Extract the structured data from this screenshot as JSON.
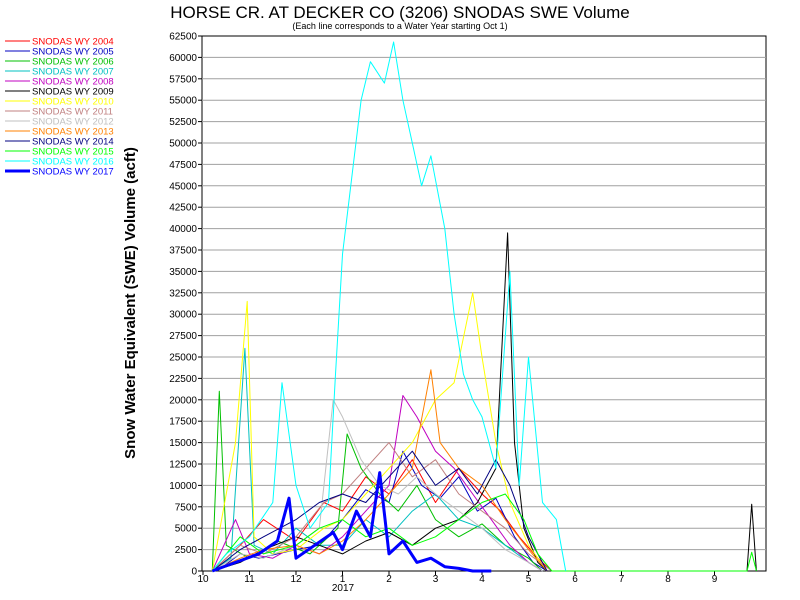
{
  "chart_data": {
    "type": "line",
    "title": "HORSE CR. AT DECKER CO (3206) SNODAS SWE Volume",
    "subtitle": "(Each line corresponds to a Water Year starting Oct 1)",
    "ylabel": "Snow Water Equivalent (SWE) Volume (acft)",
    "xlabel": "",
    "ylim": [
      0,
      62500
    ],
    "y_ticks": [
      "0",
      "2500",
      "5000",
      "7500",
      "10000",
      "12500",
      "15000",
      "17500",
      "20000",
      "22500",
      "25000",
      "27500",
      "30000",
      "32500",
      "35000",
      "37500",
      "40000",
      "42500",
      "45000",
      "47500",
      "50000",
      "52500",
      "55000",
      "57500",
      "60000",
      "62500"
    ],
    "x_ticks": [
      "10",
      "11",
      "12",
      "1",
      "2",
      "3",
      "4",
      "5",
      "6",
      "7",
      "8",
      "9"
    ],
    "x_year_label": "2017",
    "grid": "horizontal",
    "legend_position": "left",
    "series": [
      {
        "name": "SNODAS WY 2004",
        "color": "#ff0000",
        "width": 1,
        "points": [
          [
            10.2,
            0
          ],
          [
            10.8,
            3000
          ],
          [
            11.3,
            6000
          ],
          [
            12.0,
            3500
          ],
          [
            12.6,
            8000
          ],
          [
            1.0,
            7000
          ],
          [
            1.5,
            11000
          ],
          [
            2.0,
            9000
          ],
          [
            2.5,
            13000
          ],
          [
            3.0,
            8000
          ],
          [
            3.5,
            12000
          ],
          [
            4.0,
            9000
          ],
          [
            4.4,
            7000
          ],
          [
            4.8,
            4000
          ],
          [
            5.2,
            1500
          ],
          [
            5.5,
            0
          ]
        ]
      },
      {
        "name": "SNODAS WY 2005",
        "color": "#0000c0",
        "width": 1,
        "points": [
          [
            10.3,
            0
          ],
          [
            10.8,
            2000
          ],
          [
            11.2,
            1500
          ],
          [
            12.0,
            2500
          ],
          [
            12.5,
            3000
          ],
          [
            1.0,
            6000
          ],
          [
            1.5,
            9500
          ],
          [
            2.0,
            8000
          ],
          [
            2.3,
            14000
          ],
          [
            2.7,
            10000
          ],
          [
            3.1,
            8500
          ],
          [
            3.5,
            11000
          ],
          [
            3.9,
            7000
          ],
          [
            4.3,
            8500
          ],
          [
            4.7,
            4000
          ],
          [
            5.1,
            1000
          ],
          [
            5.4,
            0
          ]
        ]
      },
      {
        "name": "SNODAS WY 2006",
        "color": "#00c000",
        "width": 1,
        "points": [
          [
            10.2,
            0
          ],
          [
            10.35,
            21000
          ],
          [
            10.5,
            3000
          ],
          [
            11.0,
            1500
          ],
          [
            11.6,
            3500
          ],
          [
            12.3,
            2000
          ],
          [
            12.9,
            5000
          ],
          [
            1.1,
            16000
          ],
          [
            1.4,
            12000
          ],
          [
            1.8,
            9000
          ],
          [
            2.2,
            7000
          ],
          [
            2.6,
            10000
          ],
          [
            3.0,
            6000
          ],
          [
            3.5,
            4000
          ],
          [
            4.0,
            5500
          ],
          [
            4.5,
            3000
          ],
          [
            5.0,
            1500
          ],
          [
            5.3,
            0
          ]
        ]
      },
      {
        "name": "SNODAS WY 2007",
        "color": "#00c0c0",
        "width": 1,
        "points": [
          [
            10.2,
            0
          ],
          [
            10.6,
            1500
          ],
          [
            10.9,
            26000
          ],
          [
            11.1,
            3000
          ],
          [
            11.5,
            2000
          ],
          [
            12.0,
            5000
          ],
          [
            12.5,
            3000
          ],
          [
            1.0,
            3000
          ],
          [
            1.5,
            6000
          ],
          [
            2.0,
            4000
          ],
          [
            2.5,
            7000
          ],
          [
            3.0,
            9000
          ],
          [
            3.5,
            6000
          ],
          [
            4.0,
            5000
          ],
          [
            4.5,
            3000
          ],
          [
            5.0,
            1000
          ],
          [
            5.3,
            0
          ]
        ]
      },
      {
        "name": "SNODAS WY 2008",
        "color": "#c000c0",
        "width": 1,
        "points": [
          [
            10.2,
            0
          ],
          [
            10.7,
            6000
          ],
          [
            11.0,
            2000
          ],
          [
            11.5,
            1500
          ],
          [
            12.0,
            3000
          ],
          [
            12.5,
            2000
          ],
          [
            1.0,
            4000
          ],
          [
            1.5,
            7000
          ],
          [
            2.0,
            10000
          ],
          [
            2.3,
            20500
          ],
          [
            2.6,
            18000
          ],
          [
            3.0,
            14000
          ],
          [
            3.4,
            12000
          ],
          [
            3.8,
            9000
          ],
          [
            4.2,
            6000
          ],
          [
            4.6,
            3000
          ],
          [
            5.0,
            1000
          ],
          [
            5.3,
            0
          ]
        ]
      },
      {
        "name": "SNODAS WY 2009",
        "color": "#000000",
        "width": 1,
        "points": [
          [
            10.2,
            0
          ],
          [
            10.8,
            1000
          ],
          [
            11.3,
            2500
          ],
          [
            12.0,
            4000
          ],
          [
            12.5,
            3000
          ],
          [
            1.0,
            2000
          ],
          [
            1.5,
            3500
          ],
          [
            2.0,
            4500
          ],
          [
            2.5,
            3000
          ],
          [
            3.0,
            5000
          ],
          [
            3.5,
            6000
          ],
          [
            3.9,
            8000
          ],
          [
            4.3,
            12000
          ],
          [
            4.55,
            39500
          ],
          [
            4.7,
            15000
          ],
          [
            4.9,
            5000
          ],
          [
            5.2,
            1000
          ],
          [
            5.4,
            0
          ],
          [
            9.7,
            0
          ],
          [
            9.8,
            7800
          ],
          [
            9.9,
            0
          ]
        ]
      },
      {
        "name": "SNODAS WY 2010",
        "color": "#ffff00",
        "width": 1,
        "points": [
          [
            10.2,
            0
          ],
          [
            10.7,
            15000
          ],
          [
            10.95,
            31500
          ],
          [
            11.1,
            4000
          ],
          [
            11.5,
            2000
          ],
          [
            12.0,
            2500
          ],
          [
            12.6,
            5000
          ],
          [
            1.0,
            6000
          ],
          [
            1.5,
            9000
          ],
          [
            2.0,
            12000
          ],
          [
            2.5,
            15000
          ],
          [
            3.0,
            20000
          ],
          [
            3.4,
            22000
          ],
          [
            3.8,
            32500
          ],
          [
            4.0,
            25000
          ],
          [
            4.3,
            15000
          ],
          [
            4.6,
            8000
          ],
          [
            5.0,
            3000
          ],
          [
            5.4,
            0
          ]
        ]
      },
      {
        "name": "SNODAS WY 2011",
        "color": "#c08080",
        "width": 1,
        "points": [
          [
            10.2,
            0
          ],
          [
            10.8,
            3000
          ],
          [
            11.3,
            2000
          ],
          [
            12.0,
            4000
          ],
          [
            12.6,
            8000
          ],
          [
            1.0,
            9000
          ],
          [
            1.5,
            12000
          ],
          [
            2.0,
            15000
          ],
          [
            2.5,
            11000
          ],
          [
            3.0,
            13000
          ],
          [
            3.5,
            9000
          ],
          [
            4.0,
            7000
          ],
          [
            4.5,
            5000
          ],
          [
            5.0,
            2000
          ],
          [
            5.5,
            0
          ]
        ]
      },
      {
        "name": "SNODAS WY 2012",
        "color": "#c0c0c0",
        "width": 1,
        "points": [
          [
            10.2,
            0
          ],
          [
            10.8,
            2000
          ],
          [
            11.3,
            1500
          ],
          [
            12.0,
            3000
          ],
          [
            12.5,
            5000
          ],
          [
            12.8,
            20000
          ],
          [
            1.0,
            18000
          ],
          [
            1.4,
            13000
          ],
          [
            1.8,
            10000
          ],
          [
            2.2,
            9000
          ],
          [
            2.6,
            11000
          ],
          [
            3.0,
            9000
          ],
          [
            3.5,
            7000
          ],
          [
            4.0,
            5000
          ],
          [
            4.5,
            2500
          ],
          [
            5.0,
            1000
          ],
          [
            5.3,
            0
          ]
        ]
      },
      {
        "name": "SNODAS WY 2013",
        "color": "#ff8000",
        "width": 1,
        "points": [
          [
            10.2,
            0
          ],
          [
            10.8,
            1500
          ],
          [
            11.3,
            2500
          ],
          [
            12.0,
            3000
          ],
          [
            12.5,
            2000
          ],
          [
            1.0,
            3500
          ],
          [
            1.5,
            6000
          ],
          [
            2.0,
            9000
          ],
          [
            2.5,
            12000
          ],
          [
            2.9,
            23500
          ],
          [
            3.1,
            15000
          ],
          [
            3.5,
            12000
          ],
          [
            4.0,
            10000
          ],
          [
            4.5,
            6000
          ],
          [
            5.0,
            2500
          ],
          [
            5.4,
            0
          ]
        ]
      },
      {
        "name": "SNODAS WY 2014",
        "color": "#000080",
        "width": 1,
        "points": [
          [
            10.2,
            0
          ],
          [
            10.8,
            2500
          ],
          [
            11.3,
            4000
          ],
          [
            12.0,
            6000
          ],
          [
            12.5,
            8000
          ],
          [
            1.0,
            9000
          ],
          [
            1.5,
            8000
          ],
          [
            2.0,
            11000
          ],
          [
            2.5,
            14000
          ],
          [
            3.0,
            10000
          ],
          [
            3.5,
            12000
          ],
          [
            3.9,
            9000
          ],
          [
            4.3,
            13000
          ],
          [
            4.6,
            10000
          ],
          [
            5.0,
            4000
          ],
          [
            5.4,
            0
          ]
        ]
      },
      {
        "name": "SNODAS WY 2015",
        "color": "#00ff00",
        "width": 1,
        "points": [
          [
            10.2,
            0
          ],
          [
            10.8,
            4000
          ],
          [
            11.3,
            2000
          ],
          [
            12.0,
            3000
          ],
          [
            12.5,
            5000
          ],
          [
            1.0,
            6000
          ],
          [
            1.5,
            4000
          ],
          [
            2.0,
            5000
          ],
          [
            2.5,
            3000
          ],
          [
            3.0,
            4000
          ],
          [
            3.5,
            6000
          ],
          [
            4.0,
            8000
          ],
          [
            4.5,
            9000
          ],
          [
            4.9,
            6000
          ],
          [
            5.2,
            2000
          ],
          [
            5.5,
            0
          ],
          [
            9.7,
            0
          ],
          [
            9.8,
            2200
          ],
          [
            9.9,
            0
          ]
        ]
      },
      {
        "name": "SNODAS WY 2016",
        "color": "#00ffff",
        "width": 1,
        "points": [
          [
            10.2,
            0
          ],
          [
            10.5,
            2000
          ],
          [
            11.0,
            4000
          ],
          [
            11.5,
            8000
          ],
          [
            11.7,
            22000
          ],
          [
            12.0,
            10000
          ],
          [
            12.3,
            5000
          ],
          [
            12.7,
            8000
          ],
          [
            12.85,
            23000
          ],
          [
            1.0,
            37000
          ],
          [
            1.2,
            46000
          ],
          [
            1.4,
            55000
          ],
          [
            1.6,
            59500
          ],
          [
            1.9,
            57000
          ],
          [
            2.1,
            61800
          ],
          [
            2.3,
            55000
          ],
          [
            2.5,
            50000
          ],
          [
            2.7,
            45000
          ],
          [
            2.9,
            48500
          ],
          [
            3.2,
            40000
          ],
          [
            3.4,
            30000
          ],
          [
            3.6,
            23000
          ],
          [
            3.8,
            20000
          ],
          [
            4.0,
            18000
          ],
          [
            4.3,
            12000
          ],
          [
            4.6,
            35000
          ],
          [
            4.8,
            10000
          ],
          [
            5.0,
            25000
          ],
          [
            5.3,
            8000
          ],
          [
            5.6,
            6000
          ],
          [
            5.8,
            0
          ]
        ]
      },
      {
        "name": "SNODAS WY 2017",
        "color": "#0000ff",
        "width": 3,
        "points": [
          [
            10.2,
            0
          ],
          [
            10.7,
            1000
          ],
          [
            11.2,
            2000
          ],
          [
            11.6,
            3500
          ],
          [
            11.85,
            8500
          ],
          [
            12.0,
            1500
          ],
          [
            12.4,
            3000
          ],
          [
            12.8,
            4500
          ],
          [
            1.0,
            2500
          ],
          [
            1.3,
            7000
          ],
          [
            1.6,
            4000
          ],
          [
            1.8,
            11500
          ],
          [
            2.0,
            2000
          ],
          [
            2.3,
            3500
          ],
          [
            2.6,
            1000
          ],
          [
            2.9,
            1500
          ],
          [
            3.2,
            500
          ],
          [
            3.5,
            300
          ],
          [
            3.8,
            0
          ],
          [
            4.2,
            0
          ]
        ]
      }
    ]
  }
}
